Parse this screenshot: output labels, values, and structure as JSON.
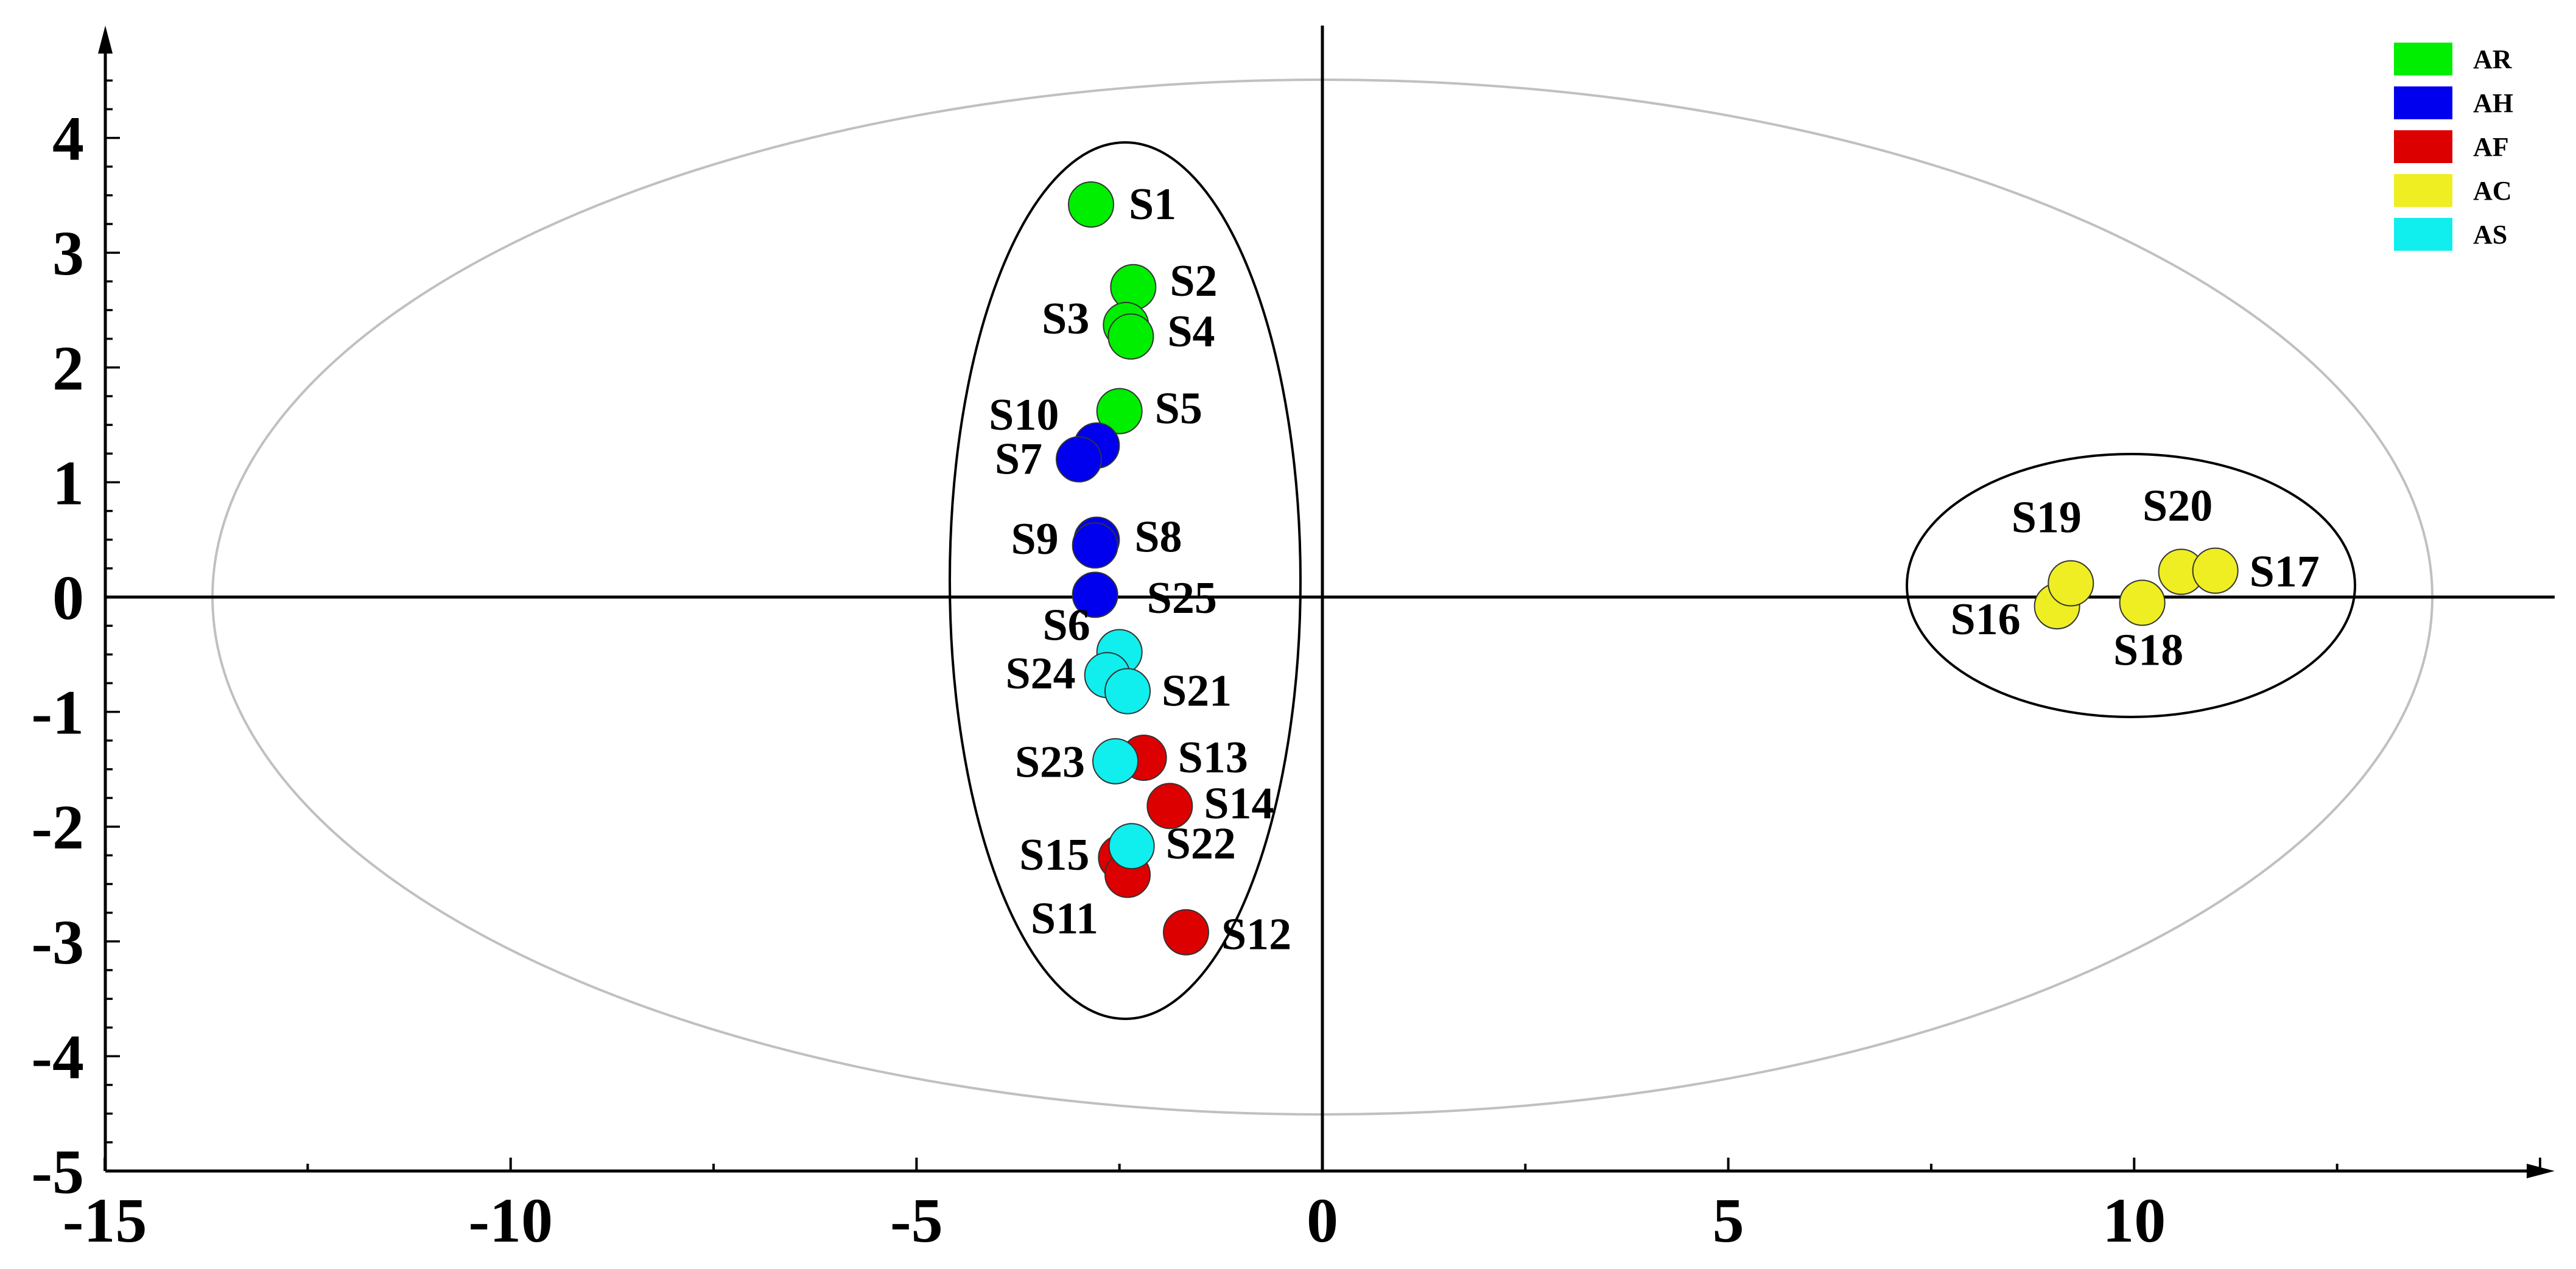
{
  "chart_data": {
    "type": "scatter",
    "title": "",
    "xlabel": "",
    "ylabel": "",
    "xlim": [
      -15,
      15
    ],
    "ylim": [
      -5,
      5
    ],
    "x_ticks": [
      -15,
      -10,
      -5,
      0,
      5,
      10
    ],
    "y_ticks": [
      -5,
      -4,
      -3,
      -2,
      -1,
      0,
      1,
      2,
      3,
      4
    ],
    "legend_position": "top-right",
    "series": [
      {
        "name": "AR",
        "color": "#00ee00",
        "points": [
          {
            "label": "S1",
            "x": -2.85,
            "y": 3.42
          },
          {
            "label": "S2",
            "x": -2.33,
            "y": 2.7
          },
          {
            "label": "S3",
            "x": -2.42,
            "y": 2.37
          },
          {
            "label": "S4",
            "x": -2.36,
            "y": 2.27
          },
          {
            "label": "S5",
            "x": -2.5,
            "y": 1.62
          }
        ]
      },
      {
        "name": "AH",
        "color": "#0000ee",
        "points": [
          {
            "label": "S10",
            "x": -2.78,
            "y": 1.32
          },
          {
            "label": "S7",
            "x": -3.0,
            "y": 1.2
          },
          {
            "label": "S8",
            "x": -2.78,
            "y": 0.5
          },
          {
            "label": "S9",
            "x": -2.8,
            "y": 0.45
          },
          {
            "label": "S25",
            "x": -2.8,
            "y": 0.02
          }
        ]
      },
      {
        "name": "AF",
        "color": "#dd0000",
        "points": [
          {
            "label": "S13",
            "x": -2.2,
            "y": -1.4
          },
          {
            "label": "S14",
            "x": -1.88,
            "y": -1.82
          },
          {
            "label": "S15",
            "x": -2.48,
            "y": -2.27
          },
          {
            "label": "S11",
            "x": -2.4,
            "y": -2.42
          },
          {
            "label": "S12",
            "x": -1.68,
            "y": -2.92
          }
        ]
      },
      {
        "name": "AC",
        "color": "#eeee22",
        "points": [
          {
            "label": "S16",
            "x": 9.05,
            "y": -0.08
          },
          {
            "label": "S19",
            "x": 9.22,
            "y": 0.12
          },
          {
            "label": "S18",
            "x": 10.1,
            "y": -0.05
          },
          {
            "label": "S20",
            "x": 10.58,
            "y": 0.22
          },
          {
            "label": "S17",
            "x": 11.0,
            "y": 0.23
          }
        ]
      },
      {
        "name": "AS",
        "color": "#11eeee",
        "points": [
          {
            "label": "S6",
            "x": -2.5,
            "y": -0.48
          },
          {
            "label": "S24",
            "x": -2.65,
            "y": -0.68
          },
          {
            "label": "S21",
            "x": -2.4,
            "y": -0.82
          },
          {
            "label": "S23",
            "x": -2.55,
            "y": -1.43
          },
          {
            "label": "S22",
            "x": -2.35,
            "y": -2.17
          }
        ]
      }
    ]
  }
}
